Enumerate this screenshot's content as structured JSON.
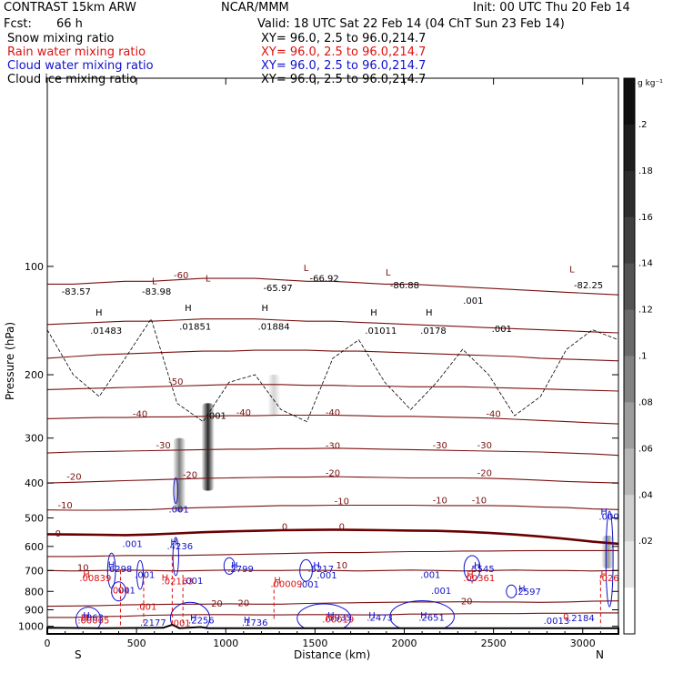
{
  "header": {
    "model": "CONTRAST 15km ARW",
    "org": "NCAR/MMM",
    "init": "Init: 00 UTC Thu 20 Feb 14",
    "fcst_label": "Fcst:",
    "fcst_value": "66 h",
    "valid": "Valid: 18 UTC Sat 22 Feb 14 (04 ChT Sun 23 Feb 14)",
    "layers": [
      {
        "name": "Snow mixing ratio",
        "xy": "XY=  96.0,  2.5 to  96.0,214.7",
        "color": "#000000"
      },
      {
        "name": "Rain water mixing ratio",
        "xy": "XY=  96.0,  2.5 to  96.0,214.7",
        "color": "#dd1111"
      },
      {
        "name": "Cloud water mixing ratio",
        "xy": "XY=  96.0,  2.5 to  96.0,214.7",
        "color": "#1111cc"
      },
      {
        "name": "Cloud ice mixing ratio",
        "xy": "XY=  96.0,  2.5 to  96.0,214.7",
        "color": "#000000"
      }
    ]
  },
  "chart_data": {
    "type": "cross-section contour",
    "xlabel": "Distance (km)",
    "ylabel": "Pressure (hPa)",
    "xlim": [
      0,
      3200
    ],
    "ylim": [
      1050,
      30
    ],
    "y_scale": "log",
    "x_ticks": [
      "0",
      "500",
      "1000",
      "1500",
      "2000",
      "2500",
      "3000"
    ],
    "y_ticks": [
      "100",
      "200",
      "300",
      "400",
      "500",
      "600",
      "700",
      "800",
      "900",
      "1000"
    ],
    "x_end_labels": {
      "left": "S",
      "right": "N"
    },
    "colorbar": {
      "unit": "g kg⁻¹",
      "labels": [
        ".2",
        ".18",
        ".16",
        ".14",
        ".12",
        ".1",
        ".08",
        ".06",
        ".04",
        ".02"
      ],
      "colors": [
        "#101010",
        "#1e1e1e",
        "#2e2e2e",
        "#404040",
        "#545454",
        "#6a6a6a",
        "#828282",
        "#9c9c9c",
        "#b6b6b6",
        "#d0d0d0",
        "#e6e6e6",
        "#ffffff"
      ]
    },
    "terrain_color": "#000000",
    "isotherms": {
      "color": "#7a1010",
      "zero_color": "#6a0000",
      "levels": [
        {
          "t": 20,
          "y": [
            945,
            945,
            940,
            938,
            932,
            930,
            928,
            928,
            930,
            930,
            928,
            928,
            930,
            930,
            925,
            925,
            923,
            922,
            922,
            920,
            920,
            918,
            918
          ]
        },
        {
          "t": 20,
          "y": [
            880,
            878,
            876,
            872,
            870,
            868,
            868,
            866,
            868,
            868,
            864,
            862,
            860,
            858,
            856,
            856,
            855,
            856,
            856,
            858,
            856,
            852,
            850
          ]
        },
        {
          "t": 10,
          "y": [
            700,
            702,
            700,
            698,
            700,
            702,
            700,
            698,
            700,
            700,
            698,
            700,
            702,
            700,
            698,
            700,
            702,
            700,
            698,
            700,
            700,
            702,
            700
          ]
        },
        {
          "t": 10,
          "y": [
            640,
            640,
            638,
            636,
            636,
            636,
            634,
            632,
            630,
            628,
            626,
            624,
            624,
            622,
            620,
            620,
            618,
            618,
            617,
            616,
            616,
            616,
            616
          ]
        },
        {
          "t": 0,
          "y": [
            555,
            556,
            557,
            558,
            556,
            552,
            548,
            545,
            543,
            541,
            540,
            539,
            540,
            541,
            542,
            543,
            546,
            550,
            556,
            563,
            572,
            582,
            590
          ]
        },
        {
          "t": -10,
          "y": [
            475,
            476,
            476,
            475,
            474,
            470,
            468,
            466,
            464,
            462,
            462,
            461,
            461,
            461,
            461,
            462,
            462,
            462,
            463,
            466,
            468,
            472,
            474
          ]
        },
        {
          "t": -20,
          "y": [
            400,
            398,
            396,
            394,
            392,
            390,
            388,
            387,
            386,
            385,
            385,
            384,
            385,
            386,
            387,
            387,
            387,
            388,
            390,
            393,
            396,
            398,
            400
          ]
        },
        {
          "t": -30,
          "y": [
            330,
            328,
            327,
            326,
            325,
            324,
            323,
            322,
            322,
            321,
            321,
            320,
            321,
            322,
            323,
            324,
            325,
            326,
            327,
            328,
            330,
            332,
            335
          ]
        },
        {
          "t": -40,
          "y": [
            265,
            264,
            263,
            263,
            262,
            262,
            261,
            260,
            260,
            259,
            259,
            259,
            260,
            261,
            261,
            262,
            263,
            264,
            266,
            268,
            270,
            272,
            274
          ]
        },
        {
          "t": -50,
          "y": [
            220,
            219,
            218,
            217,
            216,
            215,
            214,
            213,
            213,
            213,
            214,
            214,
            215,
            215,
            216,
            216,
            216,
            217,
            218,
            219,
            220,
            221,
            222
          ]
        },
        {
          "t": -60,
          "y": [
            180,
            178,
            176,
            175,
            174,
            173,
            172,
            172,
            171,
            171,
            171,
            172,
            172,
            173,
            174,
            175,
            176,
            177,
            178,
            180,
            181,
            182,
            183
          ]
        },
        {
          "t": -70,
          "y": [
            145,
            144,
            143,
            142,
            142,
            141,
            140,
            140,
            140,
            141,
            142,
            142,
            143,
            144,
            145,
            146,
            147,
            148,
            149,
            150,
            151,
            152,
            153
          ]
        },
        {
          "t": -80,
          "y": [
            112,
            112,
            111,
            110,
            110,
            109,
            108,
            108,
            108,
            109,
            110,
            110,
            111,
            112,
            112,
            113,
            114,
            115,
            116,
            117,
            118,
            119,
            120
          ]
        }
      ]
    },
    "temperature_labels": [
      {
        "text": "20",
        "x": 2350,
        "p": 870
      },
      {
        "text": "20",
        "x": 1100,
        "p": 880
      },
      {
        "text": "20",
        "x": 950,
        "p": 882
      },
      {
        "text": "10",
        "x": 200,
        "p": 700
      },
      {
        "text": "10",
        "x": 1650,
        "p": 690
      },
      {
        "text": "0",
        "x": 60,
        "p": 563
      },
      {
        "text": "0",
        "x": 1330,
        "p": 540
      },
      {
        "text": "0",
        "x": 1650,
        "p": 540
      },
      {
        "text": "-10",
        "x": 100,
        "p": 470
      },
      {
        "text": "-10",
        "x": 1650,
        "p": 458
      },
      {
        "text": "-10",
        "x": 2200,
        "p": 455
      },
      {
        "text": "-10",
        "x": 2420,
        "p": 455
      },
      {
        "text": "-20",
        "x": 150,
        "p": 392
      },
      {
        "text": "-20",
        "x": 800,
        "p": 387
      },
      {
        "text": "-20",
        "x": 1600,
        "p": 383
      },
      {
        "text": "-20",
        "x": 2450,
        "p": 383
      },
      {
        "text": "-30",
        "x": 650,
        "p": 320
      },
      {
        "text": "-30",
        "x": 1600,
        "p": 321
      },
      {
        "text": "-30",
        "x": 2200,
        "p": 320
      },
      {
        "text": "-30",
        "x": 2450,
        "p": 320
      },
      {
        "text": "-40",
        "x": 520,
        "p": 262
      },
      {
        "text": "-40",
        "x": 1100,
        "p": 260
      },
      {
        "text": "-40",
        "x": 1600,
        "p": 260
      },
      {
        "text": "-40",
        "x": 2500,
        "p": 262
      },
      {
        "text": "-50",
        "x": 720,
        "p": 213
      },
      {
        "text": "-60",
        "x": 750,
        "p": 108
      },
      {
        "text": "L",
        "x": 600,
        "p": 112
      },
      {
        "text": "L",
        "x": 900,
        "p": 110
      },
      {
        "text": "L",
        "x": 1450,
        "p": 103
      },
      {
        "text": "L",
        "x": 1910,
        "p": 106
      },
      {
        "text": "L",
        "x": 2940,
        "p": 104
      }
    ],
    "min_labels": [
      {
        "text": "-83.57",
        "x": 80,
        "p": 120
      },
      {
        "text": "-83.98",
        "x": 530,
        "p": 120
      },
      {
        "text": "-65.97",
        "x": 1210,
        "p": 117
      },
      {
        "text": "-66.92",
        "x": 1470,
        "p": 110
      },
      {
        "text": "-86.88",
        "x": 1920,
        "p": 115
      },
      {
        "text": "-82.25",
        "x": 2950,
        "p": 115
      }
    ],
    "ice_labels": [
      {
        "text": "H",
        "x": 270,
        "p": 137
      },
      {
        "text": ".01483",
        "x": 240,
        "p": 154
      },
      {
        "text": "H",
        "x": 770,
        "p": 133
      },
      {
        "text": ".01851",
        "x": 740,
        "p": 150
      },
      {
        "text": "H",
        "x": 1200,
        "p": 133
      },
      {
        "text": ".01884",
        "x": 1180,
        "p": 150
      },
      {
        "text": "H",
        "x": 1810,
        "p": 137
      },
      {
        "text": ".01011",
        "x": 1780,
        "p": 154
      },
      {
        "text": "H",
        "x": 2120,
        "p": 137
      },
      {
        "text": ".0178",
        "x": 2090,
        "p": 154
      },
      {
        "text": ".001",
        "x": 2330,
        "p": 127
      },
      {
        "text": ".001",
        "x": 2490,
        "p": 152
      },
      {
        "text": ".001",
        "x": 890,
        "p": 265
      }
    ],
    "cloud_labels": [
      {
        "text": ".001",
        "x": 680,
        "p": 483
      },
      {
        "text": ".001",
        "x": 420,
        "p": 602
      },
      {
        "text": "H",
        "x": 690,
        "p": 595
      },
      {
        "text": ".4236",
        "x": 670,
        "p": 612
      },
      {
        "text": "H",
        "x": 340,
        "p": 688
      },
      {
        "text": ".6298",
        "x": 330,
        "p": 706
      },
      {
        "text": ".001",
        "x": 490,
        "p": 735
      },
      {
        "text": ".001",
        "x": 760,
        "p": 763
      },
      {
        "text": "H",
        "x": 1030,
        "p": 690
      },
      {
        "text": ".2799",
        "x": 1010,
        "p": 706
      },
      {
        "text": "H",
        "x": 1490,
        "p": 690
      },
      {
        "text": ".5217",
        "x": 1460,
        "p": 706
      },
      {
        "text": ".001",
        "x": 1510,
        "p": 737
      },
      {
        "text": ".001",
        "x": 1410,
        "p": 780
      },
      {
        "text": "H",
        "x": 2390,
        "p": 690
      },
      {
        "text": ".5545",
        "x": 2360,
        "p": 706
      },
      {
        "text": ".001",
        "x": 2090,
        "p": 735
      },
      {
        "text": ".001",
        "x": 2150,
        "p": 813
      },
      {
        "text": ".001",
        "x": 380,
        "p": 810
      },
      {
        "text": "H",
        "x": 2640,
        "p": 800
      },
      {
        "text": ".2597",
        "x": 2620,
        "p": 818
      },
      {
        "text": "H",
        "x": 200,
        "p": 950
      },
      {
        "text": ".3063",
        "x": 170,
        "p": 966
      },
      {
        "text": ".2177",
        "x": 520,
        "p": 995
      },
      {
        "text": "H",
        "x": 800,
        "p": 965
      },
      {
        "text": ".2256",
        "x": 790,
        "p": 982
      },
      {
        "text": "H",
        "x": 1100,
        "p": 980
      },
      {
        "text": ".1736",
        "x": 1090,
        "p": 996
      },
      {
        "text": "H",
        "x": 1570,
        "p": 950
      },
      {
        "text": ".3935",
        "x": 1560,
        "p": 966
      },
      {
        "text": "H",
        "x": 1800,
        "p": 950
      },
      {
        "text": ".2473",
        "x": 1790,
        "p": 966
      },
      {
        "text": "H",
        "x": 2090,
        "p": 950
      },
      {
        "text": ".2651",
        "x": 2080,
        "p": 966
      },
      {
        "text": ".0013",
        "x": 2780,
        "p": 985
      },
      {
        "text": ".2184",
        "x": 2920,
        "p": 968
      },
      {
        "text": "H",
        "x": 3100,
        "p": 490
      },
      {
        "text": ".000",
        "x": 3090,
        "p": 506
      }
    ],
    "rain_labels": [
      {
        "text": "H",
        "x": 200,
        "p": 732
      },
      {
        "text": ".00839",
        "x": 180,
        "p": 749
      },
      {
        "text": "H",
        "x": 640,
        "p": 748
      },
      {
        "text": ".02163",
        "x": 640,
        "p": 765
      },
      {
        "text": "H",
        "x": 1270,
        "p": 760
      },
      {
        "text": ".00009",
        "x": 1250,
        "p": 778
      },
      {
        "text": "H",
        "x": 2350,
        "p": 732
      },
      {
        "text": ".00361",
        "x": 2330,
        "p": 749
      },
      {
        "text": "H",
        "x": 3100,
        "p": 732
      },
      {
        "text": ".026",
        "x": 3090,
        "p": 749
      },
      {
        "text": ".001",
        "x": 350,
        "p": 810
      },
      {
        "text": ".001",
        "x": 500,
        "p": 900
      },
      {
        "text": "H",
        "x": 190,
        "p": 965
      },
      {
        "text": ".00005",
        "x": 170,
        "p": 982
      },
      {
        "text": ".001",
        "x": 690,
        "p": 1000
      },
      {
        "text": "H",
        "x": 1560,
        "p": 960
      },
      {
        "text": ".00019",
        "x": 1540,
        "p": 977
      },
      {
        "text": "0",
        "x": 2890,
        "p": 960
      }
    ],
    "snow_columns": [
      {
        "x": 900,
        "p_top": 240,
        "p_bottom": 420,
        "level": 0.2
      },
      {
        "x": 740,
        "p_top": 300,
        "p_bottom": 480,
        "level": 0.12
      },
      {
        "x": 1270,
        "p_top": 200,
        "p_bottom": 260,
        "level": 0.04
      },
      {
        "x": 3140,
        "p_top": 560,
        "p_bottom": 690,
        "level": 0.1
      }
    ]
  }
}
